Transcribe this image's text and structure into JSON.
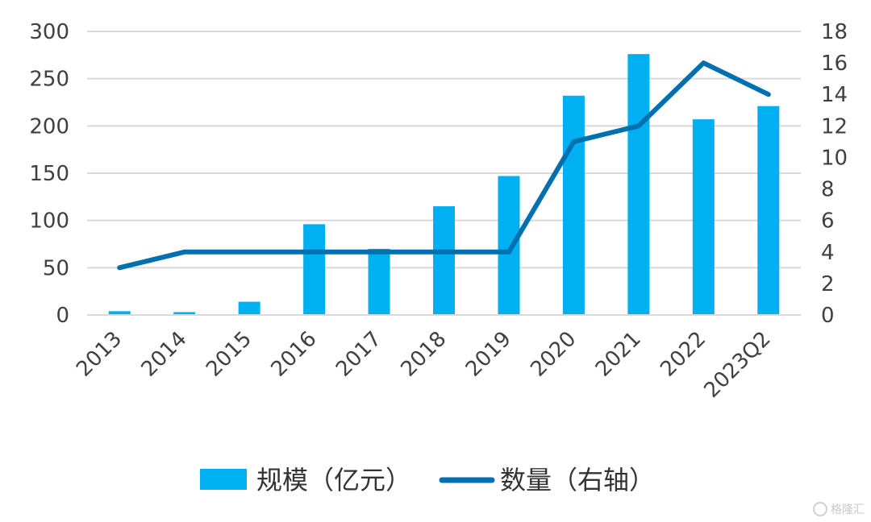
{
  "chart_data": {
    "type": "bar",
    "categories": [
      "2013",
      "2014",
      "2015",
      "2016",
      "2017",
      "2018",
      "2019",
      "2020",
      "2021",
      "2022",
      "2023Q2"
    ],
    "series": [
      {
        "name": "规模（亿元）",
        "type": "bar",
        "axis": "left",
        "color": "#00B0F0",
        "values": [
          4,
          3,
          14,
          96,
          70,
          115,
          147,
          232,
          276,
          207,
          221
        ]
      },
      {
        "name": "数量（右轴）",
        "type": "line",
        "axis": "right",
        "color": "#0070B0",
        "values": [
          3,
          4,
          4,
          4,
          4,
          4,
          4,
          11,
          12,
          16,
          14
        ]
      }
    ],
    "left_axis": {
      "min": 0,
      "max": 300,
      "ticks": [
        0,
        50,
        100,
        150,
        200,
        250,
        300
      ]
    },
    "right_axis": {
      "min": 0,
      "max": 18,
      "ticks": [
        0,
        2,
        4,
        6,
        8,
        10,
        12,
        14,
        16,
        18
      ]
    },
    "grid": true,
    "legend_position": "bottom"
  },
  "watermark": {
    "text": "格隆汇"
  }
}
